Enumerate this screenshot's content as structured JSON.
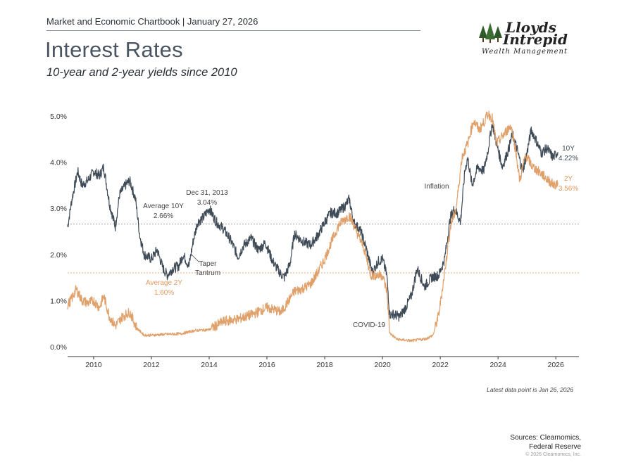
{
  "header": {
    "line": "Market and Economic Chartbook | January 27, 2026",
    "title": "Interest Rates",
    "subtitle": "10-year and 2-year yields since 2010"
  },
  "logo": {
    "line1": "Lloyds",
    "line2": "Intrepid",
    "line3": "Wealth Management",
    "icon": "trees-icon"
  },
  "footer": {
    "note": "Latest data point is Jan 26, 2026",
    "sources_line1": "Sources: Clearnomics,",
    "sources_line2": "Federal Reserve",
    "copyright": "© 2026 Clearnomics, Inc."
  },
  "chart_data": {
    "type": "line",
    "colors": {
      "10Y": "#3f4b57",
      "2Y": "#e0a06a",
      "axis": "#333333",
      "tick_text": "#333333"
    },
    "xlim": [
      2009.1,
      2026.8
    ],
    "ylim": [
      0,
      5.2
    ],
    "x_ticks": [
      "2010",
      "2012",
      "2014",
      "2016",
      "2018",
      "2020",
      "2022",
      "2024",
      "2026"
    ],
    "y_ticks": [
      "0.0%",
      "1.0%",
      "2.0%",
      "3.0%",
      "4.0%",
      "5.0%"
    ],
    "grid": false,
    "series": [
      {
        "name": "10Y",
        "x": [
          2009.1,
          2009.25,
          2009.45,
          2009.6,
          2009.8,
          2010.0,
          2010.2,
          2010.35,
          2010.55,
          2010.75,
          2010.9,
          2011.1,
          2011.25,
          2011.45,
          2011.6,
          2011.75,
          2012.0,
          2012.2,
          2012.4,
          2012.55,
          2012.75,
          2012.95,
          2013.1,
          2013.3,
          2013.45,
          2013.6,
          2013.8,
          2014.0,
          2014.25,
          2014.5,
          2014.75,
          2015.0,
          2015.2,
          2015.45,
          2015.7,
          2015.95,
          2016.2,
          2016.45,
          2016.6,
          2016.8,
          2016.95,
          2017.2,
          2017.5,
          2017.75,
          2018.0,
          2018.2,
          2018.45,
          2018.7,
          2018.85,
          2019.0,
          2019.25,
          2019.45,
          2019.65,
          2019.85,
          2020.0,
          2020.15,
          2020.25,
          2020.4,
          2020.6,
          2020.8,
          2021.0,
          2021.2,
          2021.45,
          2021.7,
          2021.95,
          2022.15,
          2022.35,
          2022.5,
          2022.7,
          2022.85,
          2022.95,
          2023.1,
          2023.3,
          2023.5,
          2023.65,
          2023.8,
          2023.95,
          2024.15,
          2024.35,
          2024.5,
          2024.65,
          2024.85,
          2025.0,
          2025.15,
          2025.3,
          2025.5,
          2025.7,
          2025.9,
          2026.07
        ],
        "values": [
          2.6,
          3.2,
          3.8,
          3.5,
          3.6,
          3.8,
          3.7,
          3.9,
          3.1,
          2.6,
          3.3,
          3.5,
          3.6,
          3.2,
          2.4,
          2.0,
          1.9,
          2.1,
          1.7,
          1.55,
          1.7,
          1.75,
          2.0,
          1.75,
          2.3,
          2.7,
          2.8,
          3.0,
          2.7,
          2.55,
          2.3,
          1.95,
          2.2,
          2.35,
          2.1,
          2.25,
          1.85,
          1.6,
          1.5,
          1.8,
          2.45,
          2.3,
          2.2,
          2.4,
          2.7,
          2.9,
          2.9,
          3.05,
          3.2,
          2.7,
          2.5,
          2.1,
          1.6,
          1.85,
          1.9,
          1.55,
          0.7,
          0.7,
          0.65,
          0.85,
          1.1,
          1.7,
          1.3,
          1.5,
          1.55,
          1.9,
          2.8,
          3.0,
          2.7,
          3.8,
          4.1,
          3.5,
          3.9,
          3.8,
          4.25,
          4.85,
          4.4,
          3.9,
          4.25,
          4.6,
          4.3,
          3.8,
          4.2,
          4.7,
          4.5,
          4.2,
          4.3,
          4.1,
          4.22
        ]
      },
      {
        "name": "2Y",
        "x": [
          2009.1,
          2009.25,
          2009.4,
          2009.6,
          2009.8,
          2010.0,
          2010.2,
          2010.35,
          2010.55,
          2010.75,
          2011.0,
          2011.25,
          2011.5,
          2011.75,
          2012.0,
          2012.5,
          2013.0,
          2013.5,
          2014.0,
          2014.5,
          2015.0,
          2015.5,
          2016.0,
          2016.5,
          2016.95,
          2017.2,
          2017.5,
          2017.75,
          2018.0,
          2018.25,
          2018.5,
          2018.85,
          2019.1,
          2019.35,
          2019.6,
          2019.85,
          2020.0,
          2020.15,
          2020.25,
          2020.5,
          2021.0,
          2021.5,
          2021.75,
          2021.95,
          2022.15,
          2022.35,
          2022.55,
          2022.75,
          2022.95,
          2023.15,
          2023.35,
          2023.5,
          2023.65,
          2023.8,
          2023.95,
          2024.2,
          2024.45,
          2024.6,
          2024.75,
          2024.95,
          2025.2,
          2025.5,
          2025.75,
          2025.95,
          2026.07
        ],
        "values": [
          0.9,
          1.05,
          1.25,
          1.0,
          0.95,
          1.0,
          0.85,
          1.1,
          0.65,
          0.45,
          0.65,
          0.75,
          0.4,
          0.25,
          0.25,
          0.27,
          0.28,
          0.35,
          0.37,
          0.55,
          0.6,
          0.7,
          0.85,
          0.75,
          1.2,
          1.25,
          1.35,
          1.6,
          1.9,
          2.3,
          2.65,
          2.85,
          2.5,
          2.15,
          1.55,
          1.55,
          1.55,
          1.2,
          0.3,
          0.16,
          0.13,
          0.17,
          0.25,
          0.7,
          1.6,
          2.6,
          3.0,
          4.1,
          4.4,
          4.9,
          4.7,
          4.85,
          5.05,
          4.95,
          4.4,
          4.6,
          4.8,
          4.3,
          3.6,
          4.15,
          3.9,
          3.75,
          3.6,
          3.5,
          3.56
        ]
      }
    ],
    "avg_lines": [
      {
        "series": "10Y",
        "value": 2.66,
        "color": "#999999"
      },
      {
        "series": "2Y",
        "value": 1.6,
        "color": "#e6a878"
      }
    ],
    "annotations": {
      "avg10_1": "Average 10Y",
      "avg10_2": "2.66%",
      "dec_1": "Dec 31, 2013",
      "dec_2": "3.04%",
      "taper_1": "Taper",
      "taper_2": "Tantrum",
      "avg2_1": "Average 2Y",
      "avg2_2": "1.60%",
      "covid": "COVID-19",
      "inflation": "Inflation",
      "end10_1": "10Y",
      "end10_2": "4.22%",
      "end2_1": "2Y",
      "end2_2": "3.56%"
    }
  }
}
